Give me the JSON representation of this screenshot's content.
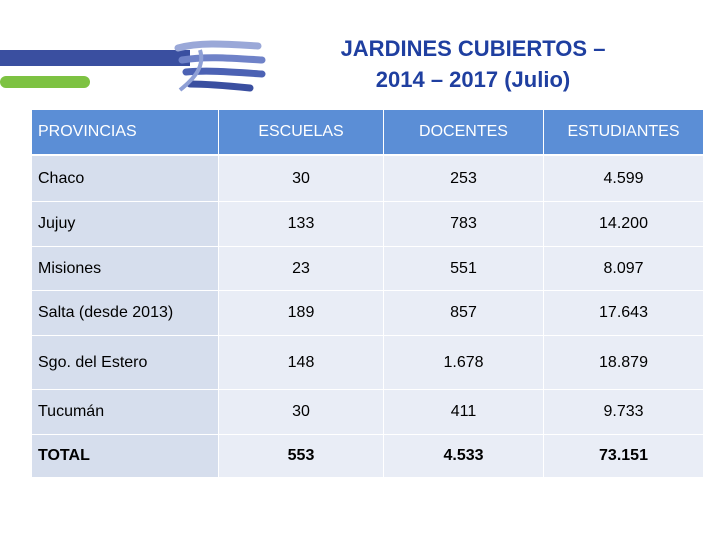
{
  "title": {
    "line1": "JARDINES CUBIERTOS –",
    "line2": "2014 – 2017 (Julio)"
  },
  "colors": {
    "header_bg": "#5b8ed6",
    "title": "#1f3fa0",
    "row_first_col": "#d6deed",
    "row_other": "#e9edf6",
    "logo_green": "#7dc242",
    "logo_blue": "#3a4fa0"
  },
  "icons": {
    "logo": "hands-logo-icon"
  },
  "table": {
    "headers": [
      "PROVINCIAS",
      "ESCUELAS",
      "DOCENTES",
      "ESTUDIANTES"
    ],
    "rows": [
      [
        "Chaco",
        "30",
        "253",
        "4.599"
      ],
      [
        "Jujuy",
        "133",
        "783",
        "14.200"
      ],
      [
        "Misiones",
        "23",
        "551",
        "8.097"
      ],
      [
        "Salta (desde 2013)",
        "189",
        "857",
        "17.643"
      ],
      [
        "Sgo. del Estero",
        "148",
        "1.678",
        "18.879"
      ],
      [
        "Tucumán",
        "30",
        "411",
        "9.733"
      ],
      [
        "TOTAL",
        "553",
        "4.533",
        "73.151"
      ]
    ]
  }
}
